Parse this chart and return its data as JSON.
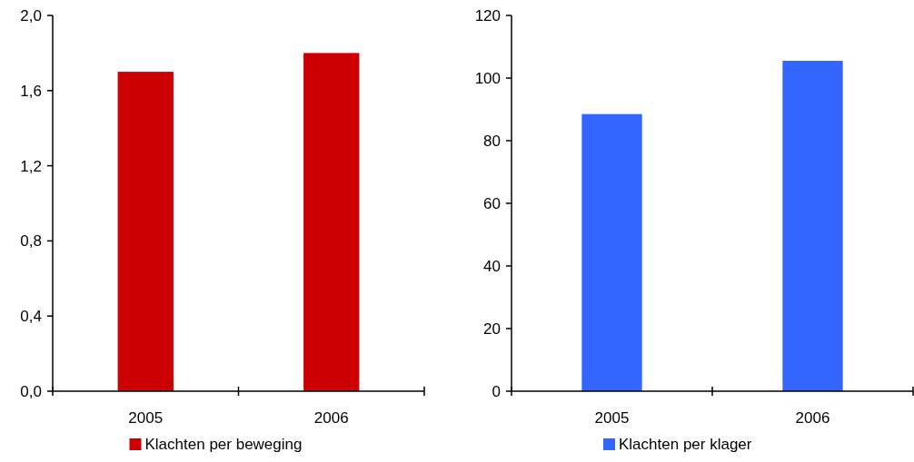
{
  "chart_data": [
    {
      "type": "bar",
      "categories": [
        "2005",
        "2006"
      ],
      "series": [
        {
          "name": "Klachten per beweging",
          "color": "#cc0000",
          "values": [
            1.7,
            1.8
          ]
        }
      ],
      "ylim": [
        0,
        2
      ],
      "yticks": [
        {
          "value": 0,
          "label": "0,0"
        },
        {
          "value": 0.4,
          "label": "0,4"
        },
        {
          "value": 0.8,
          "label": "0,8"
        },
        {
          "value": 1.2,
          "label": "1,2"
        },
        {
          "value": 1.6,
          "label": "1,6"
        },
        {
          "value": 2,
          "label": "2,0"
        }
      ],
      "legend": "bottom",
      "grid": false
    },
    {
      "type": "bar",
      "categories": [
        "2005",
        "2006"
      ],
      "series": [
        {
          "name": "Klachten per klager",
          "color": "#3366ff",
          "values": [
            88.5,
            105.5
          ]
        }
      ],
      "ylim": [
        0,
        120
      ],
      "yticks": [
        0,
        20,
        40,
        60,
        80,
        100,
        120
      ],
      "legend": "bottom",
      "grid": false
    }
  ]
}
